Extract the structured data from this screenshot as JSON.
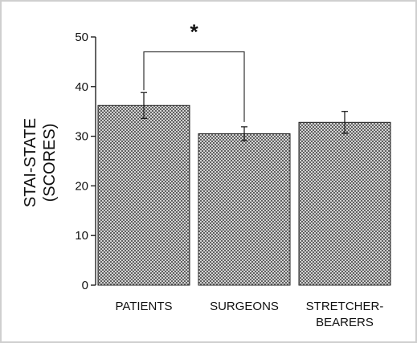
{
  "chart_data": {
    "type": "bar",
    "categories": [
      "PATIENTS",
      "SURGEONS",
      "STRETCHER-BEARERS"
    ],
    "category_lines": [
      [
        "PATIENTS"
      ],
      [
        "SURGEONS"
      ],
      [
        "STRETCHER-",
        "BEARERS"
      ]
    ],
    "values": [
      36.2,
      30.5,
      32.8
    ],
    "error": [
      2.6,
      1.4,
      2.2
    ],
    "ylabel_lines": [
      "STAI-STATE",
      "(SCORES)"
    ],
    "xlabel": "",
    "ylim": [
      0,
      50
    ],
    "yticks": [
      0,
      10,
      20,
      30,
      40,
      50
    ],
    "grid": false,
    "significance": {
      "between": [
        0,
        1
      ],
      "y": 47,
      "label": "*"
    },
    "bar_pattern": "crosshatch",
    "colors": {
      "bar_fill": "#9a9a9a",
      "bar_stroke": "#222222",
      "axis": "#111111"
    }
  }
}
